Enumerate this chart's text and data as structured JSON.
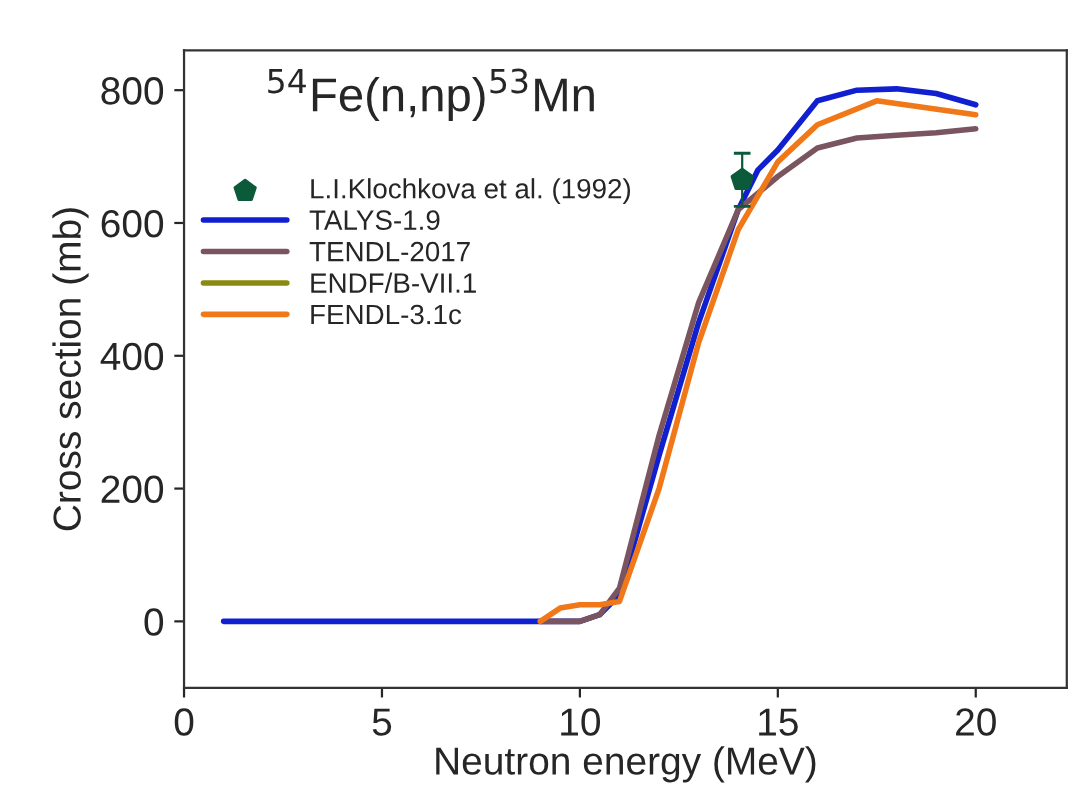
{
  "chart_data": {
    "type": "line",
    "title": "$^{54}$Fe(n,np)$^{53}$Mn",
    "xlabel": "Neutron energy (MeV)",
    "ylabel": "Cross section (mb)",
    "xlim": [
      0,
      22.3
    ],
    "xticks": [
      0,
      5,
      10,
      15,
      20
    ],
    "ylim": [
      -100,
      860
    ],
    "yticks": [
      0,
      200,
      400,
      600,
      800
    ],
    "grid": false,
    "legend": "top left",
    "series": [
      {
        "name": "L.I.Klochkova et al. (1992)",
        "type": "scatter",
        "color": "#0b5a3a",
        "x": [
          14.1
        ],
        "values": [
          665
        ],
        "errors": [
          40
        ]
      },
      {
        "name": "TALYS-1.9",
        "color": "#1020d0",
        "x": [
          1,
          10,
          10.5,
          11,
          12,
          13,
          14,
          14.5,
          15,
          16,
          17,
          18,
          19,
          20
        ],
        "values": [
          0,
          0,
          10,
          40,
          250,
          450,
          620,
          680,
          710,
          784,
          800,
          802,
          795,
          778
        ]
      },
      {
        "name": "TENDL-2017",
        "color": "#7a5560",
        "x": [
          9,
          10,
          10.5,
          11,
          12,
          13,
          14,
          15,
          16,
          17,
          18,
          19,
          20
        ],
        "values": [
          0,
          0,
          10,
          50,
          280,
          480,
          620,
          670,
          713,
          728,
          732,
          736,
          742
        ]
      },
      {
        "name": "ENDF/B-VII.1",
        "color": "#8a8a10"
      },
      {
        "name": "FENDL-3.1c",
        "color": "#f07818",
        "x": [
          9,
          9.5,
          10,
          10.5,
          11,
          12,
          13,
          14,
          15,
          16,
          17.5,
          20
        ],
        "values": [
          0,
          20,
          25,
          25,
          30,
          200,
          420,
          590,
          692,
          748,
          784,
          763
        ]
      }
    ]
  }
}
